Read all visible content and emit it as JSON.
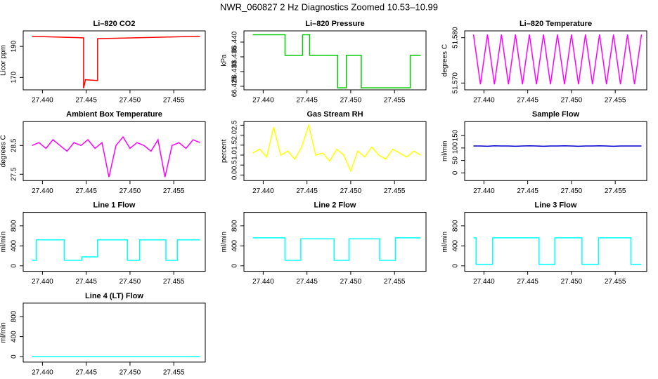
{
  "title": "NWR_060827  2 Hz Diagnostics Zoomed 10.53–10.99",
  "chart_data": [
    {
      "type": "line",
      "title": "Li–820 CO2",
      "y_label": "Licor ppm",
      "xlim": [
        27.4378,
        27.4586
      ],
      "ylim": [
        162,
        200
      ],
      "xticks": [
        {
          "value": 27.44,
          "label": "27.440"
        },
        27.445,
        {
          "value": 27.45,
          "label": "27.450"
        },
        27.455
      ],
      "yticks": [
        170,
        190
      ],
      "series": [
        {
          "color": "#ff0000",
          "x": [
            27.4388,
            27.4447,
            27.4447,
            27.4449,
            27.4449,
            27.4463,
            27.4463,
            27.458
          ],
          "values": [
            196.5,
            195.5,
            163,
            168,
            168.5,
            168,
            195,
            196.5
          ]
        }
      ]
    },
    {
      "type": "line",
      "title": "Li–820 Pressure",
      "y_label": "kPa",
      "xlim": [
        27.4378,
        27.4586
      ],
      "ylim": [
        66.4238,
        66.4438
      ],
      "xticks": [
        {
          "value": 27.44,
          "label": "27.440"
        },
        27.445,
        {
          "value": 27.45,
          "label": "27.450"
        },
        27.455
      ],
      "yticks": [
        66.425,
        {
          "value": 66.43,
          "label": "66.430"
        },
        66.435,
        {
          "value": 66.44,
          "label": "66.440"
        }
      ],
      "series": [
        {
          "color": "#00cc00",
          "x": [
            27.4388,
            27.4425,
            27.4425,
            27.4445,
            27.4445,
            27.4453,
            27.4453,
            27.4485,
            27.4485,
            27.4495,
            27.4495,
            27.4512,
            27.4512,
            27.4568,
            27.4568,
            27.458
          ],
          "values": [
            66.4425,
            66.4425,
            66.4355,
            66.4355,
            66.4425,
            66.4425,
            66.4355,
            66.4355,
            66.4245,
            66.4245,
            66.4355,
            66.4355,
            66.4245,
            66.4245,
            66.4355,
            66.4355
          ]
        }
      ]
    },
    {
      "type": "line",
      "title": "Li–820 Temperature",
      "y_label": "degrees C",
      "xlim": [
        27.4378,
        27.4586
      ],
      "ylim": [
        51.5685,
        51.5815
      ],
      "xticks": [
        {
          "value": 27.44,
          "label": "27.440"
        },
        27.445,
        {
          "value": 27.45,
          "label": "27.450"
        },
        27.455
      ],
      "yticks": [
        {
          "value": 51.57,
          "label": "51.570"
        },
        {
          "value": 51.58,
          "label": "51.580"
        }
      ],
      "series": [
        {
          "color": "#ff00ff",
          "x": [
            27.4388,
            27.4396,
            27.4404,
            27.4412,
            27.442,
            27.4428,
            27.4436,
            27.4444,
            27.4452,
            27.446,
            27.4468,
            27.4476,
            27.4484,
            27.4492,
            27.45,
            27.4508,
            27.4516,
            27.4524,
            27.4532,
            27.454,
            27.4548,
            27.4556,
            27.4564,
            27.4572,
            27.458
          ],
          "values": [
            51.5807,
            51.5697,
            51.5807,
            51.5697,
            51.5807,
            51.5697,
            51.5807,
            51.5697,
            51.5807,
            51.5697,
            51.5807,
            51.5697,
            51.5807,
            51.5697,
            51.5807,
            51.5697,
            51.5807,
            51.5697,
            51.5807,
            51.5697,
            51.5807,
            51.5697,
            51.5807,
            51.5697,
            51.5807
          ]
        }
      ]
    },
    {
      "type": "line",
      "title": "Ambient Box Temperature",
      "y_label": "degrees C",
      "xlim": [
        27.4378,
        27.4586
      ],
      "ylim": [
        27.28,
        29.33
      ],
      "xticks": [
        {
          "value": 27.44,
          "label": "27.440"
        },
        27.445,
        {
          "value": 27.45,
          "label": "27.450"
        },
        27.455
      ],
      "yticks": [
        27.5,
        28.5
      ],
      "series": [
        {
          "color": "#ff00ff",
          "x": [
            27.4388,
            27.4396,
            27.4404,
            27.4412,
            27.442,
            27.4428,
            27.4436,
            27.4444,
            27.4452,
            27.446,
            27.4468,
            27.4476,
            27.4484,
            27.4492,
            27.45,
            27.4508,
            27.4516,
            27.4524,
            27.4532,
            27.454,
            27.4548,
            27.4556,
            27.4564,
            27.4572,
            27.458
          ],
          "values": [
            28.5,
            28.6,
            28.4,
            28.7,
            28.5,
            28.3,
            28.6,
            28.5,
            28.7,
            28.4,
            28.6,
            27.4,
            28.5,
            28.8,
            28.4,
            28.6,
            28.5,
            28.3,
            28.7,
            27.4,
            28.5,
            28.6,
            28.4,
            28.7,
            28.6
          ]
        }
      ]
    },
    {
      "type": "line",
      "title": "Gas Stream RH",
      "y_label": "percent",
      "xlim": [
        27.4378,
        27.4586
      ],
      "ylim": [
        -0.28,
        2.68
      ],
      "xticks": [
        {
          "value": 27.44,
          "label": "27.440"
        },
        27.445,
        {
          "value": 27.45,
          "label": "27.450"
        },
        27.455
      ],
      "yticks": [
        {
          "value": 0,
          "label": "0.0"
        },
        0.5,
        {
          "value": 1,
          "label": "1.0"
        },
        1.5,
        {
          "value": 2,
          "label": "2.0"
        },
        2.5
      ],
      "series": [
        {
          "color": "#ffff00",
          "x": [
            27.4388,
            27.4396,
            27.4404,
            27.4412,
            27.442,
            27.4428,
            27.4436,
            27.4444,
            27.4452,
            27.446,
            27.4468,
            27.4476,
            27.4484,
            27.4492,
            27.45,
            27.4508,
            27.4516,
            27.4524,
            27.4532,
            27.454,
            27.4548,
            27.4556,
            27.4564,
            27.4572,
            27.458
          ],
          "values": [
            1.1,
            1.3,
            0.9,
            2.4,
            1.0,
            1.2,
            0.8,
            1.4,
            2.5,
            1.0,
            1.1,
            0.7,
            1.3,
            1.0,
            0.2,
            1.2,
            0.9,
            1.4,
            1.0,
            0.8,
            1.3,
            1.1,
            0.9,
            1.2,
            1.0
          ]
        }
      ]
    },
    {
      "type": "line",
      "title": "Sample Flow",
      "y_label": "ml/min",
      "xlim": [
        27.4378,
        27.4586
      ],
      "ylim": [
        -31,
        206
      ],
      "xticks": [
        {
          "value": 27.44,
          "label": "27.440"
        },
        27.445,
        {
          "value": 27.45,
          "label": "27.450"
        },
        27.455
      ],
      "yticks": [
        0,
        50,
        100,
        150
      ],
      "series": [
        {
          "color": "#0000cc",
          "x": [
            27.4388,
            27.4396,
            27.4404,
            27.4412,
            27.442,
            27.4428,
            27.4436,
            27.4444,
            27.4452,
            27.446,
            27.4468,
            27.4476,
            27.4484,
            27.4492,
            27.45,
            27.4508,
            27.4516,
            27.4524,
            27.4532,
            27.454,
            27.4548,
            27.4556,
            27.4564,
            27.4572,
            27.458
          ],
          "values": [
            108,
            108,
            107,
            109,
            108,
            108,
            107,
            108,
            109,
            108,
            107,
            108,
            108,
            109,
            108,
            107,
            108,
            108,
            109,
            108,
            107,
            108,
            108,
            108,
            108
          ]
        }
      ]
    },
    {
      "type": "line",
      "title": "Line 1 Flow",
      "y_label": "ml/min",
      "xlim": [
        27.4378,
        27.4586
      ],
      "ylim": [
        -110,
        1070
      ],
      "xticks": [
        {
          "value": 27.44,
          "label": "27.440"
        },
        27.445,
        {
          "value": 27.45,
          "label": "27.450"
        },
        27.455
      ],
      "yticks": [
        0,
        400,
        800
      ],
      "series": [
        {
          "color": "#00ffff",
          "x": [
            27.4388,
            27.4393,
            27.4393,
            27.4425,
            27.4425,
            27.4445,
            27.4445,
            27.4463,
            27.4463,
            27.4497,
            27.4497,
            27.4511,
            27.4511,
            27.4541,
            27.4541,
            27.4554,
            27.4554,
            27.458
          ],
          "values": [
            110,
            110,
            520,
            520,
            110,
            110,
            180,
            180,
            520,
            520,
            110,
            110,
            520,
            520,
            110,
            110,
            520,
            520
          ]
        }
      ]
    },
    {
      "type": "line",
      "title": "Line 2 Flow",
      "y_label": "ml/min",
      "xlim": [
        27.4378,
        27.4586
      ],
      "ylim": [
        -110,
        1070
      ],
      "xticks": [
        {
          "value": 27.44,
          "label": "27.440"
        },
        27.445,
        {
          "value": 27.45,
          "label": "27.450"
        },
        27.455
      ],
      "yticks": [
        0,
        400,
        800
      ],
      "series": [
        {
          "color": "#00ffff",
          "x": [
            27.4388,
            27.4425,
            27.4425,
            27.4443,
            27.4443,
            27.4481,
            27.4481,
            27.4498,
            27.4498,
            27.4533,
            27.4533,
            27.4551,
            27.4551,
            27.458
          ],
          "values": [
            560,
            560,
            110,
            110,
            540,
            540,
            110,
            110,
            540,
            540,
            110,
            110,
            560,
            560
          ]
        }
      ]
    },
    {
      "type": "line",
      "title": "Line 3 Flow",
      "y_label": "ml/min",
      "xlim": [
        27.4378,
        27.4586
      ],
      "ylim": [
        -110,
        1070
      ],
      "xticks": [
        {
          "value": 27.44,
          "label": "27.440"
        },
        27.445,
        {
          "value": 27.45,
          "label": "27.450"
        },
        27.455
      ],
      "yticks": [
        0,
        400,
        800
      ],
      "series": [
        {
          "color": "#00ffff",
          "x": [
            27.4388,
            27.4391,
            27.4391,
            27.441,
            27.441,
            27.4463,
            27.4463,
            27.4481,
            27.4481,
            27.4512,
            27.4512,
            27.4531,
            27.4531,
            27.4568,
            27.4568,
            27.458
          ],
          "values": [
            560,
            560,
            30,
            30,
            560,
            560,
            30,
            30,
            560,
            560,
            30,
            30,
            560,
            560,
            30,
            30
          ]
        }
      ]
    },
    {
      "type": "line",
      "title": "Line 4 (LT) Flow",
      "y_label": "ml/min",
      "xlim": [
        27.4378,
        27.4586
      ],
      "ylim": [
        -110,
        1070
      ],
      "xticks": [
        {
          "value": 27.44,
          "label": "27.440"
        },
        27.445,
        {
          "value": 27.45,
          "label": "27.450"
        },
        27.455
      ],
      "yticks": [
        0,
        400,
        800
      ],
      "series": [
        {
          "color": "#00ffff",
          "x": [
            27.4388,
            27.458
          ],
          "values": [
            0,
            0
          ]
        }
      ]
    }
  ]
}
